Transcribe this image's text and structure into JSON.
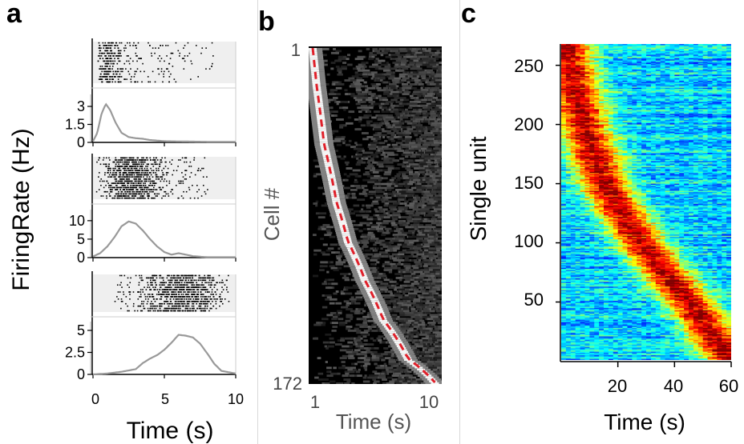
{
  "panels": {
    "a": {
      "letter": "a"
    },
    "b": {
      "letter": "b"
    },
    "c": {
      "letter": "c"
    }
  },
  "colors": {
    "raster_bg": "#efefef",
    "rate_line": "#999999",
    "fit_line": "#e0202a"
  },
  "chart_data": [
    {
      "type": "line",
      "panel": "a",
      "ylabel": "FiringRate (Hz)",
      "xlabel": "Time (s)",
      "x_ticks": [
        "0",
        "5",
        "10"
      ],
      "xlim": [
        0,
        10
      ],
      "subplots": [
        {
          "ylim": [
            0,
            4
          ],
          "y_ticks": [
            "0",
            "1.5",
            "3"
          ],
          "y_tick_values": [
            0,
            1.5,
            3
          ],
          "x": [
            0,
            0.3,
            0.6,
            0.9,
            1.2,
            1.6,
            2.0,
            2.5,
            3.0,
            3.5,
            4.0,
            5.0,
            6.0,
            8.0,
            10.0
          ],
          "y": [
            0.1,
            0.8,
            2.4,
            3.2,
            2.7,
            1.6,
            0.8,
            0.45,
            0.35,
            0.3,
            0.2,
            0.1,
            0.08,
            0.05,
            0.05
          ],
          "raster_range": [
            0.3,
            8.5
          ],
          "raster_rows": 16
        },
        {
          "ylim": [
            0,
            13
          ],
          "y_ticks": [
            "0",
            "5",
            "10"
          ],
          "y_tick_values": [
            0,
            5,
            10
          ],
          "x": [
            0,
            0.5,
            1.0,
            1.5,
            2.0,
            2.5,
            3.0,
            3.5,
            4.0,
            4.5,
            5.0,
            5.5,
            6.0,
            7.0,
            8.0,
            10.0
          ],
          "y": [
            0.3,
            1.2,
            3.0,
            5.5,
            8.5,
            9.8,
            9.2,
            7.3,
            5.0,
            3.0,
            1.5,
            0.8,
            1.2,
            0.4,
            0.1,
            0.1
          ],
          "raster_range": [
            0.2,
            8.2
          ],
          "raster_rows": 20
        },
        {
          "ylim": [
            0,
            6
          ],
          "y_ticks": [
            "0",
            "2.5",
            "5"
          ],
          "y_tick_values": [
            0,
            2.5,
            5
          ],
          "x": [
            0,
            1,
            2,
            3,
            3.5,
            4,
            4.5,
            5,
            5.5,
            6,
            6.5,
            7,
            7.5,
            8,
            8.5,
            9,
            10
          ],
          "y": [
            0,
            0.1,
            0.3,
            0.6,
            1.3,
            1.8,
            2.2,
            2.8,
            3.6,
            4.5,
            4.4,
            4.2,
            3.5,
            2.4,
            1.2,
            0.4,
            0.1
          ],
          "raster_range": [
            1.5,
            9.5
          ],
          "raster_rows": 16
        }
      ]
    },
    {
      "type": "heatmap",
      "panel": "b",
      "ylabel": "Cell #",
      "xlabel": "Time (s)",
      "x_scale": "log",
      "xlim": [
        1,
        12
      ],
      "x_ticks": [
        "1",
        "10"
      ],
      "y_ticks": [
        "1",
        "172"
      ],
      "n_cells": 172,
      "colormap": "grayscale",
      "fit_curve": {
        "style": "dashed",
        "color": "#e0202a",
        "cell": [
          1,
          20,
          50,
          80,
          100,
          120,
          140,
          160,
          172
        ],
        "time": [
          1.0,
          1.08,
          1.25,
          1.6,
          2.0,
          2.8,
          4.0,
          6.5,
          11.0
        ]
      }
    },
    {
      "type": "heatmap",
      "panel": "c",
      "ylabel": "Single unit",
      "xlabel": "Time (s)",
      "xlim": [
        0,
        60
      ],
      "ylim": [
        1,
        268
      ],
      "x_ticks": [
        "20",
        "40",
        "60"
      ],
      "x_tick_values": [
        20,
        40,
        60
      ],
      "y_ticks": [
        "50",
        "100",
        "150",
        "200",
        "250"
      ],
      "y_tick_values": [
        50,
        100,
        150,
        200,
        250
      ],
      "colormap": "jet",
      "ridge": {
        "unit": [
          268,
          240,
          200,
          150,
          100,
          50,
          1
        ],
        "time": [
          1,
          4,
          8,
          15,
          28,
          45,
          60
        ]
      }
    }
  ]
}
